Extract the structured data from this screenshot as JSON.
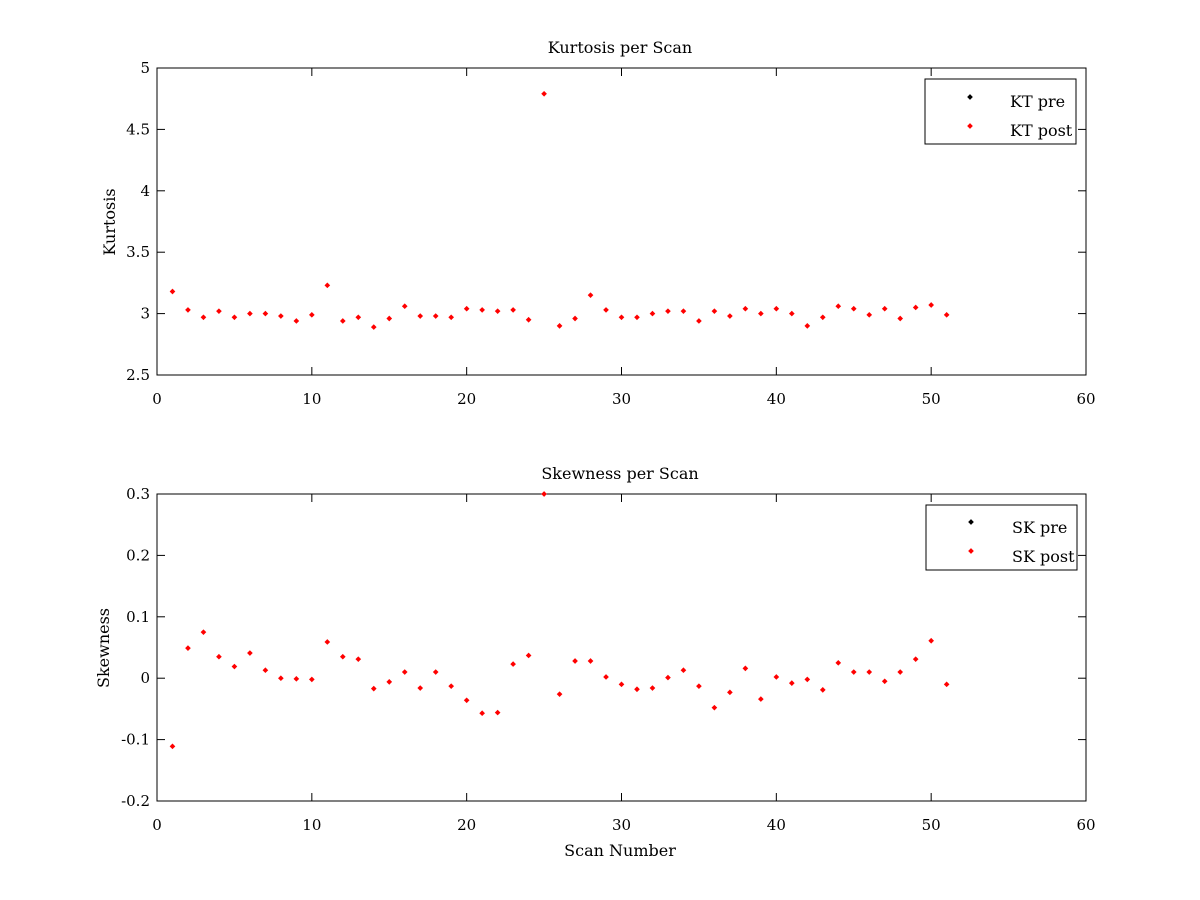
{
  "colors": {
    "pre": "#000000",
    "post": "#ff0000",
    "background": "#ffffff",
    "axes": "#000000"
  },
  "chart_data": [
    {
      "type": "scatter",
      "title": "Kurtosis per Scan",
      "xlabel": "",
      "ylabel": "Kurtosis",
      "xlim": [
        0,
        60
      ],
      "ylim": [
        2.5,
        5
      ],
      "xticks": [
        0,
        10,
        20,
        30,
        40,
        50,
        60
      ],
      "yticks": [
        2.5,
        3,
        3.5,
        4,
        4.5,
        5
      ],
      "ytick_labels": [
        "2.5",
        "3",
        "3.5",
        "4",
        "4.5",
        "5"
      ],
      "grid": false,
      "legend_position": "top-right",
      "legend": [
        "KT pre",
        "KT post"
      ],
      "series": [
        {
          "name": "KT pre",
          "color": "#000000",
          "x": [],
          "y": []
        },
        {
          "name": "KT post",
          "color": "#ff0000",
          "x": [
            1,
            2,
            3,
            4,
            5,
            6,
            7,
            8,
            9,
            10,
            11,
            12,
            13,
            14,
            15,
            16,
            17,
            18,
            19,
            20,
            21,
            22,
            23,
            24,
            25,
            26,
            27,
            28,
            29,
            30,
            31,
            32,
            33,
            34,
            35,
            36,
            37,
            38,
            39,
            40,
            41,
            42,
            43,
            44,
            45,
            46,
            47,
            48,
            49,
            50,
            51
          ],
          "y": [
            3.18,
            3.03,
            2.97,
            3.02,
            2.97,
            3.0,
            3.0,
            2.98,
            2.94,
            2.99,
            3.23,
            2.94,
            2.97,
            2.89,
            2.96,
            3.06,
            2.98,
            2.98,
            2.97,
            3.04,
            3.03,
            3.02,
            3.03,
            2.95,
            4.79,
            2.9,
            2.96,
            3.15,
            3.03,
            2.97,
            2.97,
            3.0,
            3.02,
            3.02,
            2.94,
            3.02,
            2.98,
            3.04,
            3.0,
            3.04,
            3.0,
            2.9,
            2.97,
            3.06,
            3.04,
            2.99,
            3.04,
            2.96,
            3.05,
            3.07,
            2.99
          ]
        }
      ]
    },
    {
      "type": "scatter",
      "title": "Skewness per Scan",
      "xlabel": "Scan Number",
      "ylabel": "Skewness",
      "xlim": [
        0,
        60
      ],
      "ylim": [
        -0.2,
        0.3
      ],
      "xticks": [
        0,
        10,
        20,
        30,
        40,
        50,
        60
      ],
      "yticks": [
        -0.2,
        -0.1,
        0,
        0.1,
        0.2,
        0.3
      ],
      "ytick_labels": [
        "-0.2",
        "-0.1",
        "0",
        "0.1",
        "0.2",
        "0.3"
      ],
      "grid": false,
      "legend_position": "top-right",
      "legend": [
        "SK pre",
        "SK post"
      ],
      "series": [
        {
          "name": "SK pre",
          "color": "#000000",
          "x": [],
          "y": []
        },
        {
          "name": "SK post",
          "color": "#ff0000",
          "x": [
            1,
            2,
            3,
            4,
            5,
            6,
            7,
            8,
            9,
            10,
            11,
            12,
            13,
            14,
            15,
            16,
            17,
            18,
            19,
            20,
            21,
            22,
            23,
            24,
            25,
            26,
            27,
            28,
            29,
            30,
            31,
            32,
            33,
            34,
            35,
            36,
            37,
            38,
            39,
            40,
            41,
            42,
            43,
            44,
            45,
            46,
            47,
            48,
            49,
            50,
            51
          ],
          "y": [
            -0.111,
            0.049,
            0.075,
            0.035,
            0.019,
            0.041,
            0.013,
            0.0,
            -0.001,
            -0.002,
            0.059,
            0.035,
            0.031,
            -0.017,
            -0.006,
            0.01,
            -0.016,
            0.01,
            -0.013,
            -0.036,
            -0.057,
            -0.056,
            0.023,
            0.037,
            0.3,
            -0.026,
            0.028,
            0.028,
            0.002,
            -0.01,
            -0.018,
            -0.016,
            0.001,
            0.013,
            -0.013,
            -0.048,
            -0.023,
            0.016,
            -0.034,
            0.002,
            -0.008,
            -0.002,
            -0.019,
            0.025,
            0.01,
            0.01,
            -0.005,
            0.01,
            0.031,
            0.061,
            -0.01
          ]
        }
      ]
    }
  ]
}
